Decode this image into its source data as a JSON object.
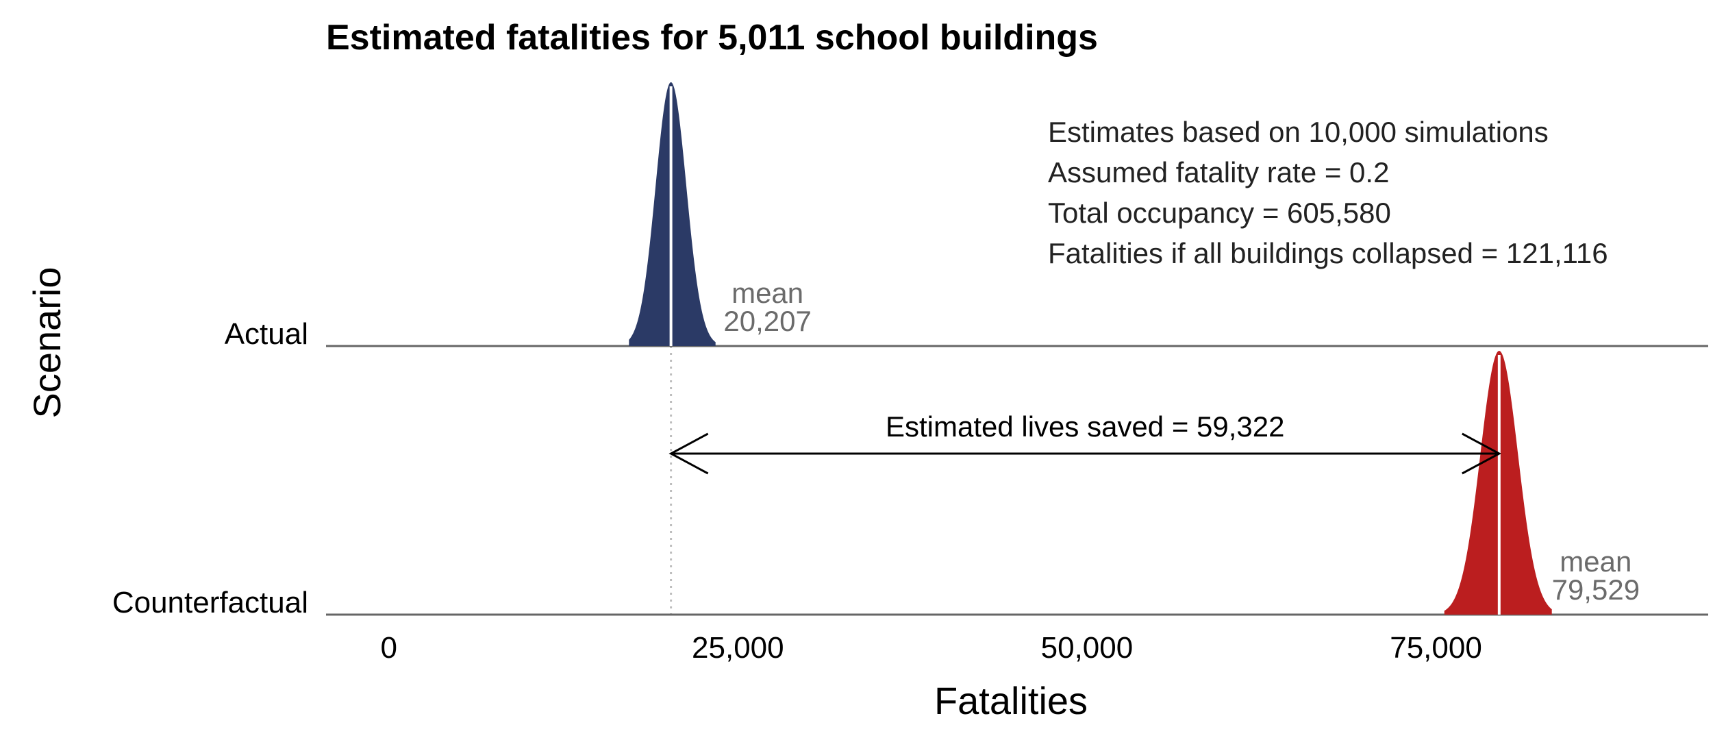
{
  "chart_data": {
    "type": "area",
    "title": "Estimated fatalities for 5,011 school buildings",
    "xlabel": "Fatalities",
    "ylabel": "Scenario",
    "xlim": [
      -4500,
      94500
    ],
    "x_ticks": [
      {
        "value": 0,
        "label": "0"
      },
      {
        "value": 25000,
        "label": "25,000"
      },
      {
        "value": 50000,
        "label": "50,000"
      },
      {
        "value": 75000,
        "label": "75,000"
      }
    ],
    "categories": [
      "Actual",
      "Counterfactual"
    ],
    "grid": false,
    "series": [
      {
        "name": "Actual",
        "mean": 20207,
        "sd": 1100,
        "range": [
          17200,
          23400
        ],
        "color": "#2b3a66",
        "mean_label": "mean",
        "mean_value_label": "20,207"
      },
      {
        "name": "Counterfactual",
        "mean": 79529,
        "sd": 1350,
        "range": [
          75600,
          83300
        ],
        "color": "#bb1e1f",
        "mean_label": "mean",
        "mean_value_label": "79,529"
      }
    ],
    "annotations": {
      "notes": [
        "Estimates based on 10,000 simulations",
        "Assumed fatality rate = 0.2",
        "Total occupancy = 605,580",
        "Fatalities if all buildings collapsed = 121,116"
      ],
      "lives_saved_label": "Estimated lives saved = 59,322",
      "arrow_from": 20207,
      "arrow_to": 79529
    }
  }
}
